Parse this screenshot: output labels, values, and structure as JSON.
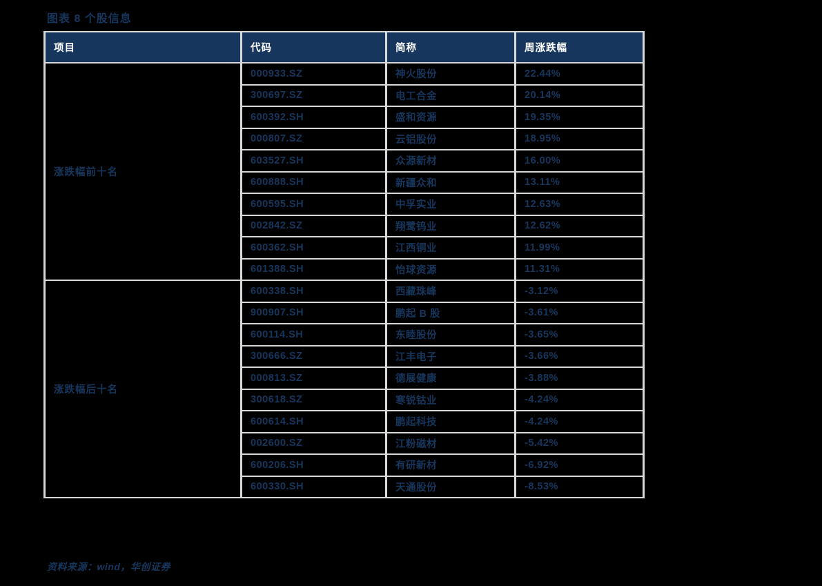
{
  "page": {
    "title": "图表 8 个股信息",
    "source_note": "资料来源：wind，华创证券"
  },
  "colors": {
    "page_bg": "#000000",
    "header_bg": "#17365d",
    "header_text": "#ffffff",
    "body_text": "#17365d",
    "border": "#d9d9d9"
  },
  "table": {
    "columns": [
      "项目",
      "代码",
      "简称",
      "周涨跌幅"
    ],
    "groups": [
      {
        "label": "涨跌幅前十名",
        "rows": [
          {
            "code": "000933.SZ",
            "name": "神火股份",
            "change": "22.44%"
          },
          {
            "code": "300697.SZ",
            "name": "电工合金",
            "change": "20.14%"
          },
          {
            "code": "600392.SH",
            "name": "盛和资源",
            "change": "19.35%"
          },
          {
            "code": "000807.SZ",
            "name": "云铝股份",
            "change": "18.95%"
          },
          {
            "code": "603527.SH",
            "name": "众源新材",
            "change": "16.00%"
          },
          {
            "code": "600888.SH",
            "name": "新疆众和",
            "change": "13.11%"
          },
          {
            "code": "600595.SH",
            "name": "中孚实业",
            "change": "12.63%"
          },
          {
            "code": "002842.SZ",
            "name": "翔鹭钨业",
            "change": "12.62%"
          },
          {
            "code": "600362.SH",
            "name": "江西铜业",
            "change": "11.99%"
          },
          {
            "code": "601388.SH",
            "name": "怡球资源",
            "change": "11.31%"
          }
        ]
      },
      {
        "label": "涨跌幅后十名",
        "rows": [
          {
            "code": "600338.SH",
            "name": "西藏珠峰",
            "change": "-3.12%"
          },
          {
            "code": "900907.SH",
            "name": "鹏起 B 股",
            "change": "-3.61%"
          },
          {
            "code": "600114.SH",
            "name": "东睦股份",
            "change": "-3.65%"
          },
          {
            "code": "300666.SZ",
            "name": "江丰电子",
            "change": "-3.66%"
          },
          {
            "code": "000813.SZ",
            "name": "德展健康",
            "change": "-3.88%"
          },
          {
            "code": "300618.SZ",
            "name": "寒锐钴业",
            "change": "-4.24%"
          },
          {
            "code": "600614.SH",
            "name": "鹏起科技",
            "change": "-4.24%"
          },
          {
            "code": "002600.SZ",
            "name": "江粉磁材",
            "change": "-5.42%"
          },
          {
            "code": "600206.SH",
            "name": "有研新材",
            "change": "-6.92%"
          },
          {
            "code": "600330.SH",
            "name": "天通股份",
            "change": "-8.53%"
          }
        ]
      }
    ]
  }
}
